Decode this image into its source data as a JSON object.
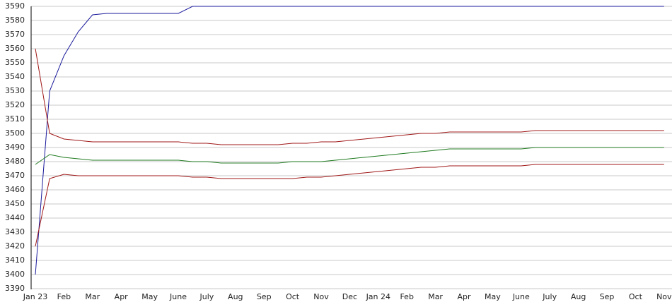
{
  "chart_data": {
    "type": "line",
    "categories": [
      "Jan 23",
      null,
      "Feb",
      null,
      "Mar",
      null,
      "Apr",
      null,
      "May",
      null,
      "June",
      null,
      "July",
      null,
      "Aug",
      null,
      "Sep",
      null,
      "Oct",
      null,
      "Nov",
      null,
      "Dec",
      null,
      "Jan 24",
      null,
      "Feb",
      null,
      "Mar",
      null,
      "Apr",
      null,
      "May",
      null,
      "June",
      null,
      "July",
      null,
      "Aug",
      null,
      "Sep",
      null,
      "Oct",
      null,
      "Nov"
    ],
    "series": [
      {
        "color": "#1a1a9c",
        "values": [
          3400,
          3530,
          3555,
          3572,
          3584,
          3585,
          3585,
          3585,
          3585,
          3585,
          3585,
          3590,
          3590,
          3590,
          3590,
          3590,
          3590,
          3590,
          3590,
          3590,
          3590,
          3590,
          3590,
          3590,
          3590,
          3590,
          3590,
          3590,
          3590,
          3590,
          3590,
          3590,
          3590,
          3590,
          3590,
          3590,
          3590,
          3590,
          3590,
          3590,
          3590,
          3590,
          3590,
          3590,
          3590
        ]
      },
      {
        "color": "#a01818",
        "values": [
          3560,
          3500,
          3496,
          3495,
          3494,
          3494,
          3494,
          3494,
          3494,
          3494,
          3494,
          3493,
          3493,
          3492,
          3492,
          3492,
          3492,
          3492,
          3493,
          3493,
          3494,
          3494,
          3495,
          3496,
          3497,
          3498,
          3499,
          3500,
          3500,
          3501,
          3501,
          3501,
          3501,
          3501,
          3501,
          3502,
          3502,
          3502,
          3502,
          3502,
          3502,
          3502,
          3502,
          3502,
          3502
        ]
      },
      {
        "color": "#1f7a1f",
        "values": [
          3478,
          3485,
          3483,
          3482,
          3481,
          3481,
          3481,
          3481,
          3481,
          3481,
          3481,
          3480,
          3480,
          3479,
          3479,
          3479,
          3479,
          3479,
          3480,
          3480,
          3480,
          3481,
          3482,
          3483,
          3484,
          3485,
          3486,
          3487,
          3488,
          3489,
          3489,
          3489,
          3489,
          3489,
          3489,
          3490,
          3490,
          3490,
          3490,
          3490,
          3490,
          3490,
          3490,
          3490,
          3490
        ]
      },
      {
        "color": "#a01818",
        "values": [
          3420,
          3468,
          3471,
          3470,
          3470,
          3470,
          3470,
          3470,
          3470,
          3470,
          3470,
          3469,
          3469,
          3468,
          3468,
          3468,
          3468,
          3468,
          3468,
          3469,
          3469,
          3470,
          3471,
          3472,
          3473,
          3474,
          3475,
          3476,
          3476,
          3477,
          3477,
          3477,
          3477,
          3477,
          3477,
          3478,
          3478,
          3478,
          3478,
          3478,
          3478,
          3478,
          3478,
          3478,
          3478
        ]
      }
    ],
    "ylim": [
      3390,
      3590
    ],
    "yticks": [
      3390,
      3400,
      3410,
      3420,
      3430,
      3440,
      3450,
      3460,
      3470,
      3480,
      3490,
      3500,
      3510,
      3520,
      3530,
      3540,
      3550,
      3560,
      3570,
      3580,
      3590
    ],
    "grid": true
  }
}
